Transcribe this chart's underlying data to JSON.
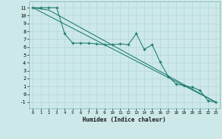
{
  "xlabel": "Humidex (Indice chaleur)",
  "background_color": "#cce8e8",
  "grid_color": "#b8d8d8",
  "line_color": "#1a7a6e",
  "xlim": [
    -0.5,
    23.5
  ],
  "ylim": [
    -1.8,
    11.8
  ],
  "xticks": [
    0,
    1,
    2,
    3,
    4,
    5,
    6,
    7,
    8,
    9,
    10,
    11,
    12,
    13,
    14,
    15,
    16,
    17,
    18,
    19,
    20,
    21,
    22,
    23
  ],
  "yticks": [
    -1,
    0,
    1,
    2,
    3,
    4,
    5,
    6,
    7,
    8,
    9,
    10,
    11
  ],
  "line1_x": [
    0,
    1,
    2,
    3,
    4,
    5,
    6,
    7,
    8,
    9,
    10,
    11,
    12,
    13,
    14,
    15,
    16,
    17,
    18,
    19,
    20,
    21,
    22,
    23
  ],
  "line1_y": [
    11,
    11,
    11,
    11,
    7.7,
    6.5,
    6.5,
    6.5,
    6.4,
    6.3,
    6.3,
    6.4,
    6.3,
    7.7,
    5.7,
    6.3,
    4.1,
    2.3,
    1.3,
    1.1,
    0.9,
    0.5,
    -0.8,
    -1.0
  ],
  "line2_x": [
    0,
    2,
    23
  ],
  "line2_y": [
    11,
    10.7,
    -1.0
  ],
  "line3_x": [
    0,
    23
  ],
  "line3_y": [
    11,
    -1.0
  ]
}
